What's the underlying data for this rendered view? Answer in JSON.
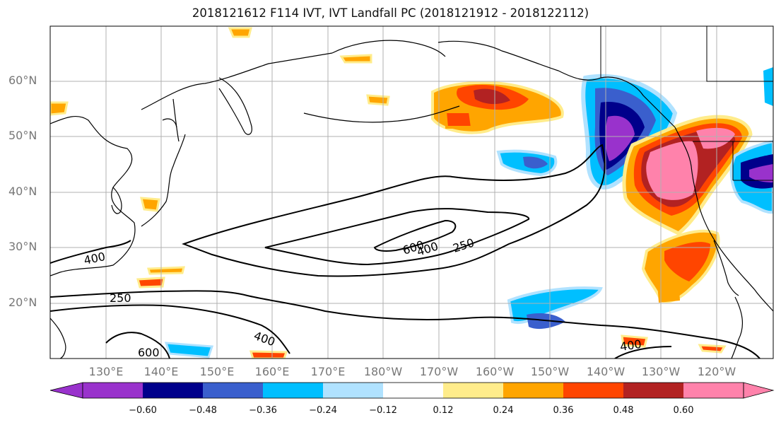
{
  "title": "2018121612 F114 IVT, IVT Landfall PC (2018121912 - 2018122112)",
  "lat_labels": [
    "60°N",
    "50°N",
    "40°N",
    "30°N",
    "20°N"
  ],
  "lon_labels": [
    "130°E",
    "140°E",
    "150°E",
    "160°E",
    "170°E",
    "180°W",
    "170°W",
    "160°W",
    "150°W",
    "140°W",
    "130°W",
    "120°W"
  ],
  "contour_labels": [
    "400",
    "250",
    "600",
    "400",
    "250",
    "400",
    "600",
    "400"
  ],
  "colorbar": {
    "colors": [
      "#9932CC",
      "#00008B",
      "#3A5FCD",
      "#00BFFF",
      "#B0E2FF",
      "#FFFFFF",
      "#FFEC8B",
      "#FFA500",
      "#FF4500",
      "#B22222",
      "#FF82AB"
    ],
    "tick_labels": [
      "−0.60",
      "−0.48",
      "−0.36",
      "−0.24",
      "−0.12",
      "0.12",
      "0.24",
      "0.36",
      "0.48",
      "0.60"
    ]
  },
  "colors": {
    "grid": "#b0b0b0",
    "tick_text": "#777777"
  }
}
